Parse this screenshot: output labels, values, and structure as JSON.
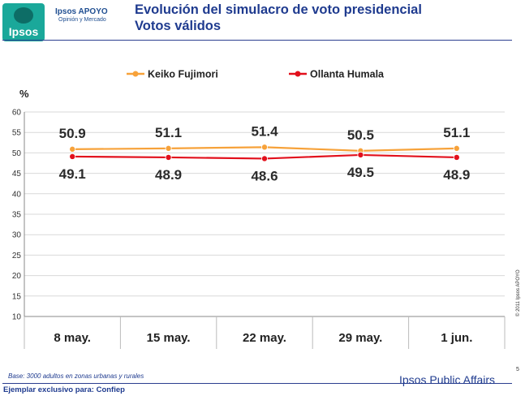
{
  "header": {
    "logo_word": "Ipsos",
    "brand_name": "Ipsos APOYO",
    "brand_tagline": "Opinión y Mercado",
    "title_line1": "Evolución del simulacro de voto presidencial",
    "title_line2": "Votos válidos"
  },
  "chart_data": {
    "type": "line",
    "title": "",
    "xlabel": "",
    "ylabel": "%",
    "categories": [
      "8 may.",
      "15 may.",
      "22 may.",
      "29 may.",
      "1 jun."
    ],
    "ylim": [
      10,
      60
    ],
    "yticks": [
      10,
      15,
      20,
      25,
      30,
      35,
      40,
      45,
      50,
      55,
      60
    ],
    "grid": true,
    "legend_position": "top",
    "series": [
      {
        "name": "Keiko Fujimori",
        "color": "#f7a23a",
        "values": [
          50.9,
          51.1,
          51.4,
          50.5,
          51.1
        ],
        "label_placement": "above"
      },
      {
        "name": "Ollanta Humala",
        "color": "#e2101c",
        "values": [
          49.1,
          48.9,
          48.6,
          49.5,
          48.9
        ],
        "label_placement": "below"
      }
    ]
  },
  "side_note": "© 2011 Ipsos APOYO",
  "base_note": "Base: 3000 adultos en zonas urbanas y rurales",
  "footer_left": "Ejemplar exclusivo para: Confiep",
  "footer_brand": "Ipsos Public Affairs",
  "page_number": "5"
}
